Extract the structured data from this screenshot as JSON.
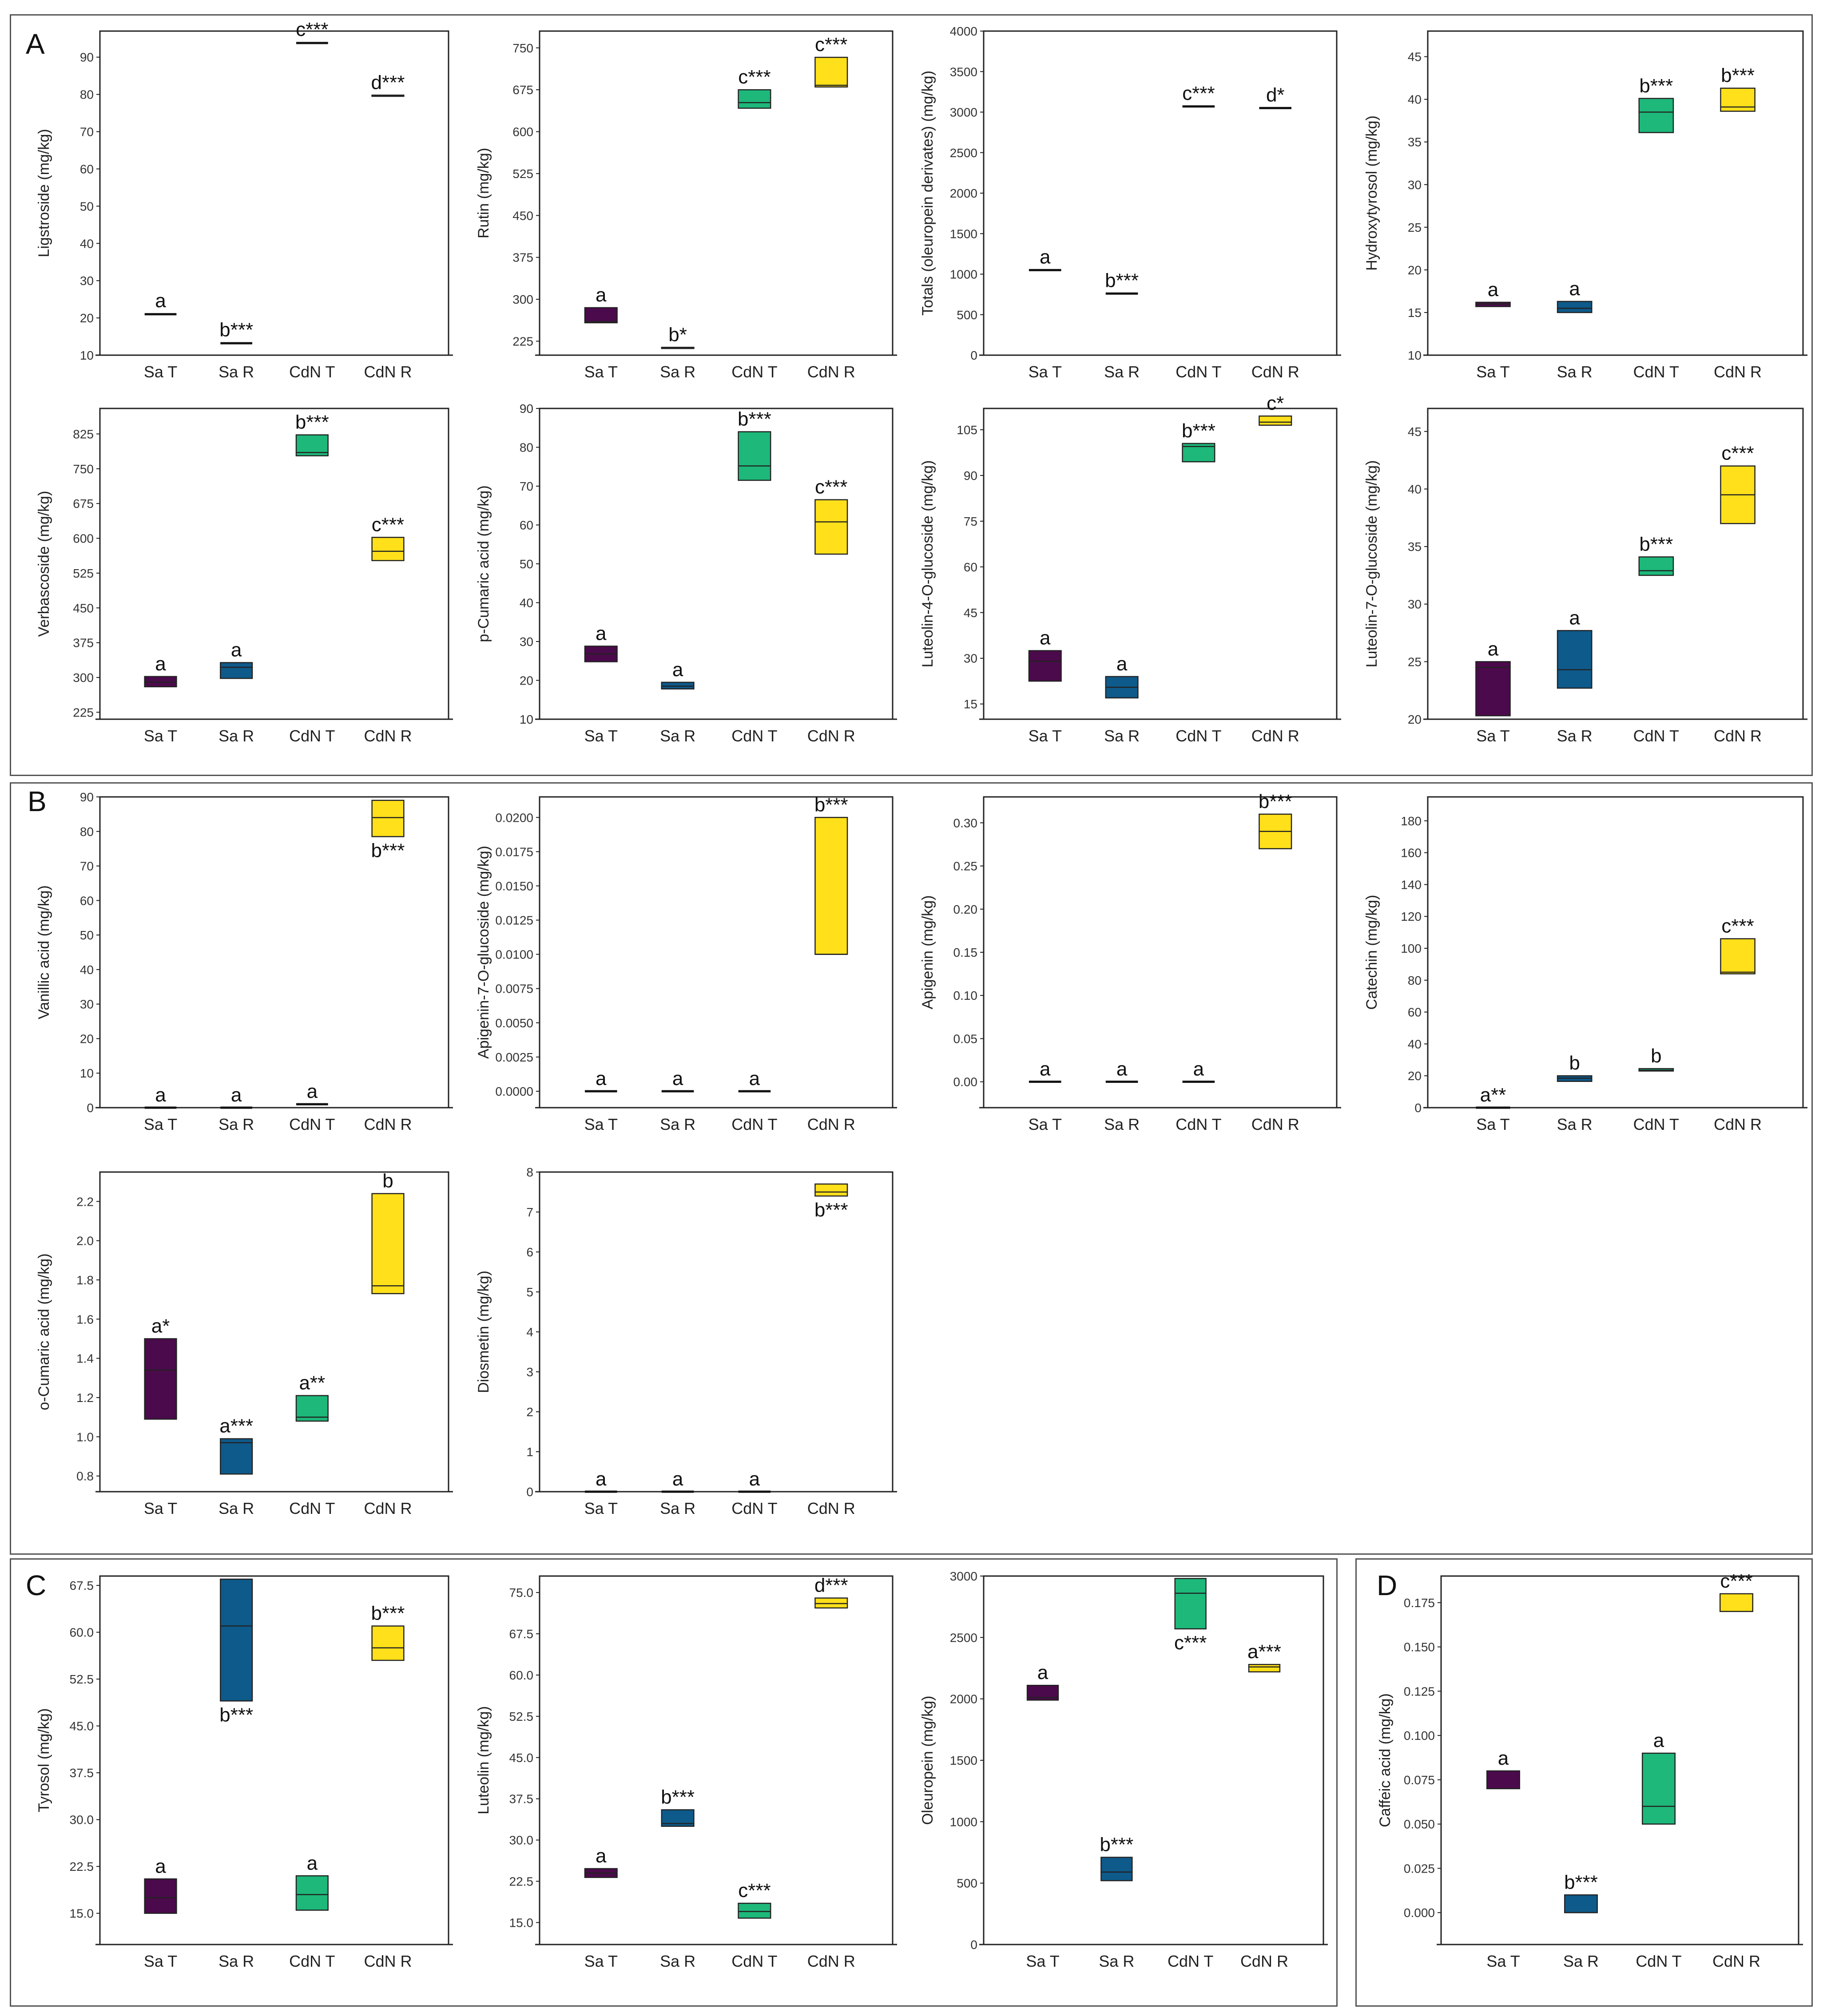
{
  "colors": {
    "Sa T": "#4b0a4b",
    "Sa R": "#0e5a8a",
    "CdN T": "#1db87a",
    "CdN R": "#ffe01a",
    "frame": "#555555"
  },
  "panels": [
    {
      "id": "A",
      "label": "A"
    },
    {
      "id": "B",
      "label": "B"
    },
    {
      "id": "C",
      "label": "C"
    },
    {
      "id": "D",
      "label": "D"
    }
  ],
  "categories": [
    "Sa T",
    "Sa R",
    "CdN T",
    "CdN R"
  ],
  "chart_data": [
    {
      "id": "ligstroside",
      "panel": "A",
      "type": "box",
      "ylabel": "Ligstroside (mg/kg)",
      "ylim": [
        10,
        97
      ],
      "yticks": [
        10,
        20,
        30,
        40,
        50,
        60,
        70,
        80,
        90
      ],
      "boxes": [
        {
          "cat": "Sa T",
          "q1": 21,
          "med": 21,
          "q3": 21.2,
          "sig": "a"
        },
        {
          "cat": "Sa R",
          "q1": 13.2,
          "med": 13.2,
          "q3": 13.4,
          "sig": "b***"
        },
        {
          "cat": "CdN T",
          "q1": 93.8,
          "med": 93.8,
          "q3": 94,
          "sig": "c***"
        },
        {
          "cat": "CdN R",
          "q1": 79.5,
          "med": 79.5,
          "q3": 79.8,
          "sig": "d***"
        }
      ]
    },
    {
      "id": "rutin",
      "panel": "A",
      "type": "box",
      "ylabel": "Rutin (mg/kg)",
      "ylim": [
        200,
        780
      ],
      "yticks": [
        225,
        300,
        375,
        450,
        525,
        600,
        675,
        750
      ],
      "boxes": [
        {
          "cat": "Sa T",
          "q1": 258,
          "med": 260,
          "q3": 285,
          "sig": "a"
        },
        {
          "cat": "Sa R",
          "q1": 212,
          "med": 212,
          "q3": 214,
          "sig": "b*"
        },
        {
          "cat": "CdN T",
          "q1": 642,
          "med": 652,
          "q3": 675,
          "sig": "c***"
        },
        {
          "cat": "CdN R",
          "q1": 680,
          "med": 683,
          "q3": 733,
          "sig": "c***"
        }
      ]
    },
    {
      "id": "totals",
      "panel": "A",
      "type": "box",
      "ylabel": "Totals (oleuropein derivates) (mg/kg)",
      "ylim": [
        0,
        4000
      ],
      "yticks": [
        0,
        500,
        1000,
        1500,
        2000,
        2500,
        3000,
        3500,
        4000
      ],
      "boxes": [
        {
          "cat": "Sa T",
          "q1": 1050,
          "med": 1050,
          "q3": 1055,
          "sig": "a"
        },
        {
          "cat": "Sa R",
          "q1": 760,
          "med": 760,
          "q3": 765,
          "sig": "b***"
        },
        {
          "cat": "CdN T",
          "q1": 3070,
          "med": 3070,
          "q3": 3075,
          "sig": "c***"
        },
        {
          "cat": "CdN R",
          "q1": 3050,
          "med": 3050,
          "q3": 3055,
          "sig": "d*"
        }
      ]
    },
    {
      "id": "hydroxytyrosol",
      "panel": "A",
      "type": "box",
      "ylabel": "Hydroxytyrosol (mg/kg)",
      "ylim": [
        10,
        48
      ],
      "yticks": [
        10,
        15,
        20,
        25,
        30,
        35,
        40,
        45
      ],
      "boxes": [
        {
          "cat": "Sa T",
          "q1": 15.7,
          "med": 16,
          "q3": 16.2,
          "sig": "a"
        },
        {
          "cat": "Sa R",
          "q1": 15,
          "med": 15.5,
          "q3": 16.3,
          "sig": "a"
        },
        {
          "cat": "CdN T",
          "q1": 36.1,
          "med": 38.5,
          "q3": 40.1,
          "sig": "b***"
        },
        {
          "cat": "CdN R",
          "q1": 38.6,
          "med": 39.1,
          "q3": 41.3,
          "sig": "b***"
        }
      ]
    },
    {
      "id": "verbascoside",
      "panel": "A",
      "type": "box",
      "ylabel": "Verbascoside (mg/kg)",
      "ylim": [
        210,
        880
      ],
      "yticks": [
        225,
        300,
        375,
        450,
        525,
        600,
        675,
        750,
        825
      ],
      "boxes": [
        {
          "cat": "Sa T",
          "q1": 280,
          "med": 290,
          "q3": 302,
          "sig": "a"
        },
        {
          "cat": "Sa R",
          "q1": 298,
          "med": 322,
          "q3": 332,
          "sig": "a"
        },
        {
          "cat": "CdN T",
          "q1": 778,
          "med": 785,
          "q3": 823,
          "sig": "b***"
        },
        {
          "cat": "CdN R",
          "q1": 552,
          "med": 572,
          "q3": 602,
          "sig": "c***"
        }
      ]
    },
    {
      "id": "pcumaric",
      "panel": "A",
      "type": "box",
      "ylabel": "p-Cumaric acid (mg/kg)",
      "ylim": [
        10,
        90
      ],
      "yticks": [
        10,
        20,
        30,
        40,
        50,
        60,
        70,
        80,
        90
      ],
      "boxes": [
        {
          "cat": "Sa T",
          "q1": 24.8,
          "med": 26.8,
          "q3": 28.8,
          "sig": "a"
        },
        {
          "cat": "Sa R",
          "q1": 17.8,
          "med": 18.5,
          "q3": 19.5,
          "sig": "a"
        },
        {
          "cat": "CdN T",
          "q1": 71.5,
          "med": 75.2,
          "q3": 84,
          "sig": "b***"
        },
        {
          "cat": "CdN R",
          "q1": 52.5,
          "med": 60.8,
          "q3": 66.5,
          "sig": "c***"
        }
      ]
    },
    {
      "id": "luteolin4",
      "panel": "A",
      "type": "box",
      "ylabel": "Luteolin-4-O-glucoside (mg/kg)",
      "ylim": [
        10,
        112
      ],
      "yticks": [
        15,
        30,
        45,
        60,
        75,
        90,
        105
      ],
      "boxes": [
        {
          "cat": "Sa T",
          "q1": 22.5,
          "med": 29,
          "q3": 32.5,
          "sig": "a"
        },
        {
          "cat": "Sa R",
          "q1": 17,
          "med": 20.5,
          "q3": 24,
          "sig": "a"
        },
        {
          "cat": "CdN T",
          "q1": 94.5,
          "med": 99.5,
          "q3": 100.5,
          "sig": "b***"
        },
        {
          "cat": "CdN R",
          "q1": 106.5,
          "med": 107.5,
          "q3": 109.5,
          "sig": "c*"
        }
      ]
    },
    {
      "id": "luteolin7",
      "panel": "A",
      "type": "box",
      "ylabel": "Luteolin-7-O-glucoside (mg/kg)",
      "ylim": [
        20,
        47
      ],
      "yticks": [
        20,
        25,
        30,
        35,
        40,
        45
      ],
      "boxes": [
        {
          "cat": "Sa T",
          "q1": 20.3,
          "med": 24.5,
          "q3": 25,
          "sig": "a"
        },
        {
          "cat": "Sa R",
          "q1": 22.7,
          "med": 24.3,
          "q3": 27.7,
          "sig": "a"
        },
        {
          "cat": "CdN T",
          "q1": 32.5,
          "med": 32.9,
          "q3": 34.1,
          "sig": "b***"
        },
        {
          "cat": "CdN R",
          "q1": 37,
          "med": 39.5,
          "q3": 42,
          "sig": "c***"
        }
      ]
    },
    {
      "id": "vanillic",
      "panel": "B",
      "type": "box",
      "ylabel": "Vanillic acid (mg/kg)",
      "ylim": [
        0,
        90
      ],
      "yticks": [
        0,
        10,
        20,
        30,
        40,
        50,
        60,
        70,
        80,
        90
      ],
      "boxes": [
        {
          "cat": "Sa T",
          "q1": 0,
          "med": 0,
          "q3": 0,
          "sig": "a"
        },
        {
          "cat": "Sa R",
          "q1": 0,
          "med": 0,
          "q3": 0,
          "sig": "a"
        },
        {
          "cat": "CdN T",
          "q1": 1,
          "med": 1,
          "q3": 1,
          "sig": "a"
        },
        {
          "cat": "CdN R",
          "q1": 78.5,
          "med": 84,
          "q3": 89,
          "sig": "b***",
          "sigPos": "below"
        }
      ]
    },
    {
      "id": "apigenin7",
      "panel": "B",
      "type": "box",
      "ylabel": "Apigenin-7-O-glucoside (mg/kg)",
      "ylim": [
        -0.0012,
        0.0215
      ],
      "yticks": [
        0,
        0.0025,
        0.005,
        0.0075,
        0.01,
        0.0125,
        0.015,
        0.0175,
        0.02
      ],
      "decimals": 4,
      "boxes": [
        {
          "cat": "Sa T",
          "q1": 0,
          "med": 0,
          "q3": 0,
          "sig": "a"
        },
        {
          "cat": "Sa R",
          "q1": 0,
          "med": 0,
          "q3": 0,
          "sig": "a"
        },
        {
          "cat": "CdN T",
          "q1": 0,
          "med": 0,
          "q3": 0,
          "sig": "a"
        },
        {
          "cat": "CdN R",
          "q1": 0.01,
          "med": 0.01,
          "q3": 0.02,
          "sig": "b***"
        }
      ]
    },
    {
      "id": "apigenin",
      "panel": "B",
      "type": "box",
      "ylabel": "Apigenin (mg/kg)",
      "ylim": [
        -0.03,
        0.33
      ],
      "yticks": [
        0,
        0.05,
        0.1,
        0.15,
        0.2,
        0.25,
        0.3
      ],
      "decimals": 2,
      "boxes": [
        {
          "cat": "Sa T",
          "q1": 0,
          "med": 0,
          "q3": 0,
          "sig": "a"
        },
        {
          "cat": "Sa R",
          "q1": 0,
          "med": 0,
          "q3": 0,
          "sig": "a"
        },
        {
          "cat": "CdN T",
          "q1": 0,
          "med": 0,
          "q3": 0,
          "sig": "a"
        },
        {
          "cat": "CdN R",
          "q1": 0.27,
          "med": 0.29,
          "q3": 0.31,
          "sig": "b***"
        }
      ]
    },
    {
      "id": "catechin",
      "panel": "B",
      "type": "box",
      "ylabel": "Catechin (mg/kg)",
      "ylim": [
        0,
        195
      ],
      "yticks": [
        0,
        20,
        40,
        60,
        80,
        100,
        120,
        140,
        160,
        180
      ],
      "boxes": [
        {
          "cat": "Sa T",
          "q1": 0,
          "med": 0,
          "q3": 0,
          "sig": "a**"
        },
        {
          "cat": "Sa R",
          "q1": 16.5,
          "med": 18.5,
          "q3": 20,
          "sig": "b"
        },
        {
          "cat": "CdN T",
          "q1": 23,
          "med": 23.5,
          "q3": 24.5,
          "sig": "b"
        },
        {
          "cat": "CdN R",
          "q1": 84,
          "med": 85,
          "q3": 106,
          "sig": "c***"
        }
      ]
    },
    {
      "id": "ocumaric",
      "panel": "B",
      "type": "box",
      "ylabel": "o-Cumaric acid (mg/kg)",
      "ylim": [
        0.72,
        2.35
      ],
      "yticks": [
        0.8,
        1,
        1.2,
        1.4,
        1.6,
        1.8,
        2,
        2.2
      ],
      "decimals": 1,
      "boxes": [
        {
          "cat": "Sa T",
          "q1": 1.09,
          "med": 1.34,
          "q3": 1.5,
          "sig": "a*"
        },
        {
          "cat": "Sa R",
          "q1": 0.81,
          "med": 0.97,
          "q3": 0.99,
          "sig": "a***"
        },
        {
          "cat": "CdN T",
          "q1": 1.08,
          "med": 1.1,
          "q3": 1.21,
          "sig": "a**"
        },
        {
          "cat": "CdN R",
          "q1": 1.73,
          "med": 1.77,
          "q3": 2.24,
          "sig": "b"
        }
      ]
    },
    {
      "id": "diosmetin",
      "panel": "B",
      "type": "box",
      "ylabel": "Diosmetin (mg/kg)",
      "ylim": [
        0,
        8
      ],
      "yticks": [
        0,
        1,
        2,
        3,
        4,
        5,
        6,
        7,
        8
      ],
      "boxes": [
        {
          "cat": "Sa T",
          "q1": 0,
          "med": 0,
          "q3": 0,
          "sig": "a"
        },
        {
          "cat": "Sa R",
          "q1": 0,
          "med": 0,
          "q3": 0,
          "sig": "a"
        },
        {
          "cat": "CdN T",
          "q1": 0,
          "med": 0,
          "q3": 0,
          "sig": "a"
        },
        {
          "cat": "CdN R",
          "q1": 7.4,
          "med": 7.5,
          "q3": 7.7,
          "sig": "b***",
          "sigPos": "below"
        }
      ]
    },
    {
      "id": "tyrosol",
      "panel": "C",
      "type": "box",
      "ylabel": "Tyrosol (mg/kg)",
      "ylim": [
        10,
        69
      ],
      "yticks": [
        15,
        22.5,
        30,
        37.5,
        45,
        52.5,
        60,
        67.5
      ],
      "decimals": 1,
      "boxes": [
        {
          "cat": "Sa T",
          "q1": 15,
          "med": 17.5,
          "q3": 20.5,
          "sig": "a"
        },
        {
          "cat": "Sa R",
          "q1": 49,
          "med": 61,
          "q3": 68.5,
          "sig": "b***",
          "sigPos": "below"
        },
        {
          "cat": "CdN T",
          "q1": 15.5,
          "med": 18,
          "q3": 21,
          "sig": "a"
        },
        {
          "cat": "CdN R",
          "q1": 55.5,
          "med": 57.5,
          "q3": 61,
          "sig": "b***"
        }
      ]
    },
    {
      "id": "luteolin",
      "panel": "C",
      "type": "box",
      "ylabel": "Luteolin (mg/kg)",
      "ylim": [
        11,
        78
      ],
      "yticks": [
        15,
        22.5,
        30,
        37.5,
        45,
        52.5,
        60,
        67.5,
        75
      ],
      "decimals": 1,
      "boxes": [
        {
          "cat": "Sa T",
          "q1": 23.2,
          "med": 24,
          "q3": 24.8,
          "sig": "a"
        },
        {
          "cat": "Sa R",
          "q1": 32.5,
          "med": 33,
          "q3": 35.5,
          "sig": "b***"
        },
        {
          "cat": "CdN T",
          "q1": 15.8,
          "med": 17,
          "q3": 18.5,
          "sig": "c***"
        },
        {
          "cat": "CdN R",
          "q1": 72.2,
          "med": 73,
          "q3": 74,
          "sig": "d***"
        }
      ]
    },
    {
      "id": "oleuropein",
      "panel": "C",
      "type": "box",
      "ylabel": "Oleuropein (mg/kg)",
      "ylim": [
        0,
        3000
      ],
      "yticks": [
        0,
        500,
        1000,
        1500,
        2000,
        2500,
        3000
      ],
      "boxes": [
        {
          "cat": "Sa T",
          "q1": 1990,
          "med": 2010,
          "q3": 2110,
          "sig": "a"
        },
        {
          "cat": "Sa R",
          "q1": 520,
          "med": 590,
          "q3": 710,
          "sig": "b***"
        },
        {
          "cat": "CdN T",
          "q1": 2570,
          "med": 2860,
          "q3": 2980,
          "sig": "c***",
          "sigPos": "below"
        },
        {
          "cat": "CdN R",
          "q1": 2220,
          "med": 2260,
          "q3": 2280,
          "sig": "a***"
        }
      ]
    },
    {
      "id": "caffeic",
      "panel": "D",
      "type": "box",
      "ylabel": "Caffeic acid (mg/kg)",
      "ylim": [
        -0.018,
        0.19
      ],
      "yticks": [
        0,
        0.025,
        0.05,
        0.075,
        0.1,
        0.125,
        0.15,
        0.175
      ],
      "decimals": 3,
      "boxes": [
        {
          "cat": "Sa T",
          "q1": 0.07,
          "med": 0.07,
          "q3": 0.08,
          "sig": "a"
        },
        {
          "cat": "Sa R",
          "q1": 0,
          "med": 0,
          "q3": 0.01,
          "sig": "b***"
        },
        {
          "cat": "CdN T",
          "q1": 0.05,
          "med": 0.06,
          "q3": 0.09,
          "sig": "a"
        },
        {
          "cat": "CdN R",
          "q1": 0.17,
          "med": 0.17,
          "q3": 0.18,
          "sig": "c***"
        }
      ]
    }
  ]
}
